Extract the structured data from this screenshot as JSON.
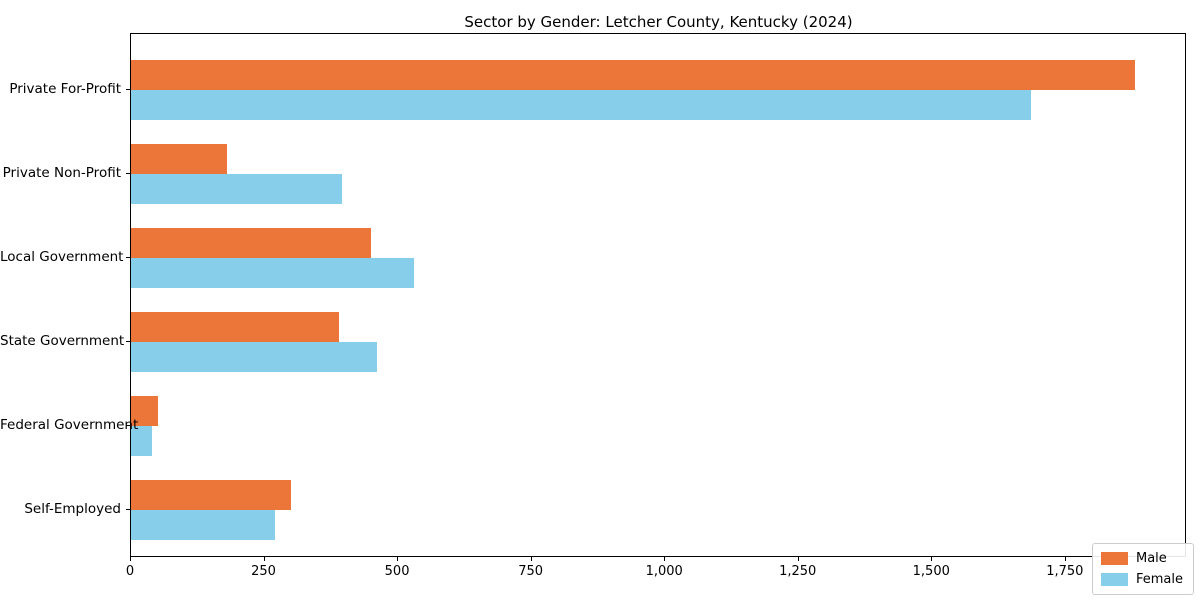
{
  "chart_data": {
    "type": "bar",
    "orientation": "horizontal",
    "title": "Sector by Gender: Letcher County, Kentucky (2024)",
    "categories": [
      "Private For-Profit",
      "Private Non-Profit",
      "Local Government",
      "State Government",
      "Federal Government",
      "Self-Employed"
    ],
    "series": [
      {
        "name": "Male",
        "color": "#ec7639",
        "values": [
          1880,
          180,
          450,
          390,
          50,
          300
        ]
      },
      {
        "name": "Female",
        "color": "#87ceeb",
        "values": [
          1685,
          395,
          530,
          460,
          40,
          270
        ]
      }
    ],
    "xlabel": "",
    "ylabel": "",
    "xlim": [
      0,
      1975
    ],
    "xticks": [
      0,
      250,
      500,
      750,
      1000,
      1250,
      1500,
      1750
    ],
    "xtick_labels": [
      "0",
      "250",
      "500",
      "750",
      "1,000",
      "1,250",
      "1,500",
      "1,750"
    ],
    "grid": false,
    "legend": {
      "position": "lower right"
    }
  }
}
